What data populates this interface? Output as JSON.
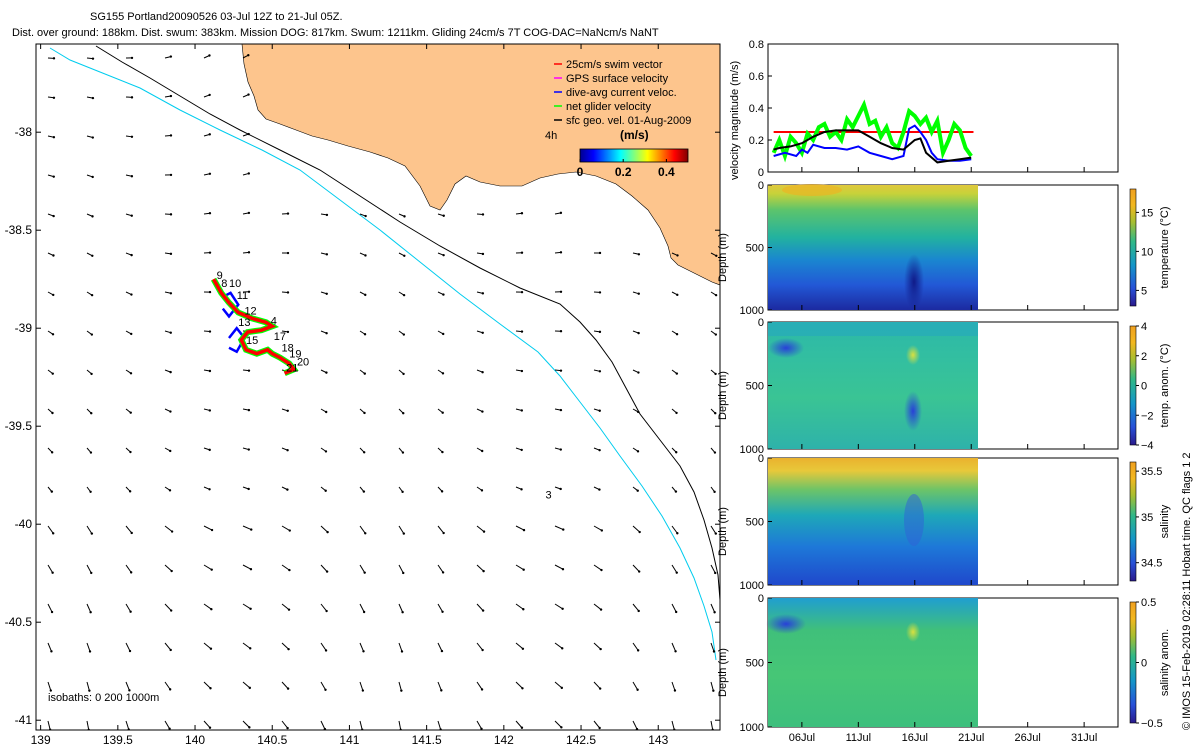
{
  "header": {
    "line1": "SG155 Portland20090526 03-Jul 12Z to 21-Jul 05Z.",
    "line2": "Dist. over ground: 188km. Dist. swum: 383km. Mission DOG: 817km. Swum: 1211km. Gliding 24cm/s 7T COG-DAC=NaNcm/s NaNT"
  },
  "footer": {
    "credit": "© IMOS 15-Feb-2019 02:28:11 Hobart time. QC flags 1  2"
  },
  "colors": {
    "land": "#fdc58d",
    "swim_vector": "#ff0000",
    "gps_velocity": "#ff00ff",
    "dive_avg_current": "#0000ff",
    "net_glider_velocity": "#00ff00",
    "sfc_geo_vel": "#000000",
    "isobath_200": "#00ccee",
    "isobath_1000": "#000000"
  },
  "chart_data": [
    {
      "type": "map",
      "x_ticks": [
        "139",
        "139.5",
        "140",
        "140.5",
        "141",
        "141.5",
        "142",
        "142.5",
        "143"
      ],
      "x_tick_values": [
        139,
        139.5,
        140,
        140.5,
        141,
        141.5,
        142,
        142.5,
        143
      ],
      "y_ticks": [
        "-38",
        "-38.5",
        "-39",
        "-39.5",
        "-40",
        "-40.5",
        "-41"
      ],
      "y_tick_values": [
        -38,
        -38.5,
        -39,
        -39.5,
        -40,
        -40.5,
        -41
      ],
      "xlim": [
        138.97,
        143.4
      ],
      "ylim": [
        -41.05,
        -37.55
      ],
      "legend": [
        {
          "label": "25cm/s swim vector",
          "color": "#ff0000"
        },
        {
          "label": "GPS surface velocity",
          "color": "#ff00ff"
        },
        {
          "label": "dive-avg current veloc.",
          "color": "#0000ff"
        },
        {
          "label": "net glider velocity",
          "color": "#00ff00"
        },
        {
          "label": "sfc geo. vel. 01-Aug-2009",
          "color": "#000000"
        }
      ],
      "colorbar": {
        "title": "(m/s)",
        "side_label": "4h",
        "ticks": [
          "0",
          "0.2",
          "0.4"
        ],
        "tick_values": [
          0,
          0.2,
          0.4
        ],
        "range": [
          0,
          0.5
        ]
      },
      "isobaths_label": "isobaths: 0   200   1000m",
      "track_labels": [
        {
          "text": "9",
          "lon": 140.14,
          "lat": -38.75
        },
        {
          "text": "8",
          "lon": 140.17,
          "lat": -38.79
        },
        {
          "text": "10",
          "lon": 140.22,
          "lat": -38.79
        },
        {
          "text": "11",
          "lon": 140.27,
          "lat": -38.85
        },
        {
          "text": "12",
          "lon": 140.32,
          "lat": -38.93
        },
        {
          "text": "4",
          "lon": 140.49,
          "lat": -38.98
        },
        {
          "text": "13",
          "lon": 140.28,
          "lat": -38.99
        },
        {
          "text": "15",
          "lon": 140.33,
          "lat": -39.08
        },
        {
          "text": "17",
          "lon": 140.51,
          "lat": -39.06
        },
        {
          "text": "18",
          "lon": 140.56,
          "lat": -39.12
        },
        {
          "text": "19",
          "lon": 140.61,
          "lat": -39.15
        },
        {
          "text": "20",
          "lon": 140.66,
          "lat": -39.19
        },
        {
          "text": "21",
          "lon": 140.59,
          "lat": -39.22
        },
        {
          "text": "3",
          "lon": 142.27,
          "lat": -39.87
        }
      ],
      "track": [
        [
          140.12,
          -38.75
        ],
        [
          140.17,
          -38.82
        ],
        [
          140.22,
          -38.87
        ],
        [
          140.28,
          -38.92
        ],
        [
          140.37,
          -38.95
        ],
        [
          140.46,
          -38.97
        ],
        [
          140.5,
          -38.99
        ],
        [
          140.43,
          -39.01
        ],
        [
          140.34,
          -39.02
        ],
        [
          140.3,
          -39.06
        ],
        [
          140.33,
          -39.11
        ],
        [
          140.4,
          -39.13
        ],
        [
          140.47,
          -39.11
        ],
        [
          140.5,
          -39.13
        ],
        [
          140.55,
          -39.15
        ],
        [
          140.61,
          -39.18
        ],
        [
          140.64,
          -39.21
        ],
        [
          140.58,
          -39.23
        ]
      ],
      "track_loop_1": [
        [
          140.18,
          -38.84
        ],
        [
          140.23,
          -38.82
        ],
        [
          140.28,
          -38.88
        ],
        [
          140.22,
          -38.94
        ],
        [
          140.18,
          -38.9
        ]
      ],
      "track_loop_2": [
        [
          140.22,
          -39.05
        ],
        [
          140.27,
          -39.0
        ],
        [
          140.32,
          -39.05
        ],
        [
          140.27,
          -39.12
        ],
        [
          140.22,
          -39.1
        ]
      ]
    },
    {
      "type": "line",
      "ylabel": "velocity magnitude (m/s)",
      "ylim": [
        0,
        0.8
      ],
      "y_ticks": [
        "0",
        "0.2",
        "0.4",
        "0.6",
        "0.8"
      ],
      "y_tick_values": [
        0,
        0.2,
        0.4,
        0.6,
        0.8
      ],
      "series": [
        {
          "color": "#ff0000",
          "x": [
            3.5,
            21.2
          ],
          "y": [
            0.25,
            0.25
          ]
        },
        {
          "color": "#00ff00",
          "x": [
            3.5,
            4,
            4.5,
            5,
            5.5,
            6,
            6.5,
            7,
            7.5,
            8,
            8.5,
            9,
            9.5,
            10,
            10.5,
            11,
            11.5,
            12,
            12.5,
            13,
            13.5,
            14,
            14.5,
            15,
            15.5,
            16,
            16.5,
            17,
            17.5,
            18,
            18.5,
            19,
            19.5,
            20,
            20.5,
            21
          ],
          "y": [
            0.12,
            0.2,
            0.1,
            0.22,
            0.18,
            0.12,
            0.24,
            0.2,
            0.28,
            0.3,
            0.22,
            0.25,
            0.2,
            0.33,
            0.28,
            0.35,
            0.42,
            0.3,
            0.32,
            0.22,
            0.28,
            0.18,
            0.15,
            0.25,
            0.38,
            0.35,
            0.3,
            0.34,
            0.25,
            0.32,
            0.12,
            0.2,
            0.3,
            0.26,
            0.15,
            0.1
          ]
        },
        {
          "color": "#0000ff",
          "x": [
            3.5,
            4.5,
            5.5,
            6,
            6.5,
            7,
            8,
            9,
            10,
            11,
            12,
            13,
            14,
            15,
            15.5,
            16,
            16.5,
            17,
            17.5,
            18,
            19,
            20,
            21
          ],
          "y": [
            0.1,
            0.12,
            0.1,
            0.14,
            0.12,
            0.17,
            0.15,
            0.15,
            0.14,
            0.16,
            0.12,
            0.1,
            0.08,
            0.1,
            0.27,
            0.29,
            0.25,
            0.2,
            0.12,
            0.08,
            0.07,
            0.07,
            0.08
          ]
        },
        {
          "color": "#000000",
          "x": [
            3.5,
            4,
            5,
            6,
            7,
            8,
            9,
            10,
            11,
            12,
            13,
            14,
            15,
            16,
            16.5,
            17,
            18,
            19,
            20,
            21
          ],
          "y": [
            0.14,
            0.15,
            0.16,
            0.18,
            0.22,
            0.25,
            0.26,
            0.26,
            0.26,
            0.22,
            0.18,
            0.15,
            0.14,
            0.2,
            0.21,
            0.12,
            0.06,
            0.07,
            0.08,
            0.09
          ]
        }
      ]
    },
    {
      "type": "heatmap",
      "ylabel": "Depth (m)",
      "ylim": [
        1000,
        0
      ],
      "y_ticks": [
        "0",
        "500",
        "1000"
      ],
      "y_tick_values": [
        0,
        500,
        1000
      ],
      "colorbar": {
        "label": "temperature (°C)",
        "ticks": [
          "5",
          "10",
          "15"
        ],
        "tick_values": [
          5,
          10,
          15
        ],
        "range": [
          3,
          18
        ]
      }
    },
    {
      "type": "heatmap",
      "ylabel": "Depth (m)",
      "ylim": [
        1000,
        0
      ],
      "y_ticks": [
        "0",
        "500",
        "1000"
      ],
      "y_tick_values": [
        0,
        500,
        1000
      ],
      "colorbar": {
        "label": "temp. anom. (°C)",
        "ticks": [
          "4",
          "2",
          "0",
          "−2",
          "−4"
        ],
        "tick_values": [
          4,
          2,
          0,
          -2,
          -4
        ],
        "range": [
          -4,
          4
        ]
      }
    },
    {
      "type": "heatmap",
      "ylabel": "Depth (m)",
      "ylim": [
        1000,
        0
      ],
      "y_ticks": [
        "0",
        "500",
        "1000"
      ],
      "y_tick_values": [
        0,
        500,
        1000
      ],
      "colorbar": {
        "label": "salinity",
        "ticks": [
          "35.5",
          "35",
          "34.5"
        ],
        "tick_values": [
          35.5,
          35,
          34.5
        ],
        "range": [
          34.3,
          35.6
        ]
      }
    },
    {
      "type": "heatmap",
      "ylabel": "Depth (m)",
      "ylim": [
        1000,
        0
      ],
      "y_ticks": [
        "0",
        "500",
        "1000"
      ],
      "y_tick_values": [
        0,
        500,
        1000
      ],
      "x_ticks": [
        "06Jul",
        "11Jul",
        "16Jul",
        "21Jul",
        "26Jul",
        "31Jul"
      ],
      "x_tick_values": [
        6,
        11,
        16,
        21,
        26,
        31
      ],
      "xlim": [
        3,
        34
      ],
      "colorbar": {
        "label": "salinity anom.",
        "ticks": [
          "0.5",
          "0",
          "−0.5"
        ],
        "tick_values": [
          0.5,
          0,
          -0.5
        ],
        "range": [
          -0.5,
          0.5
        ]
      }
    }
  ]
}
